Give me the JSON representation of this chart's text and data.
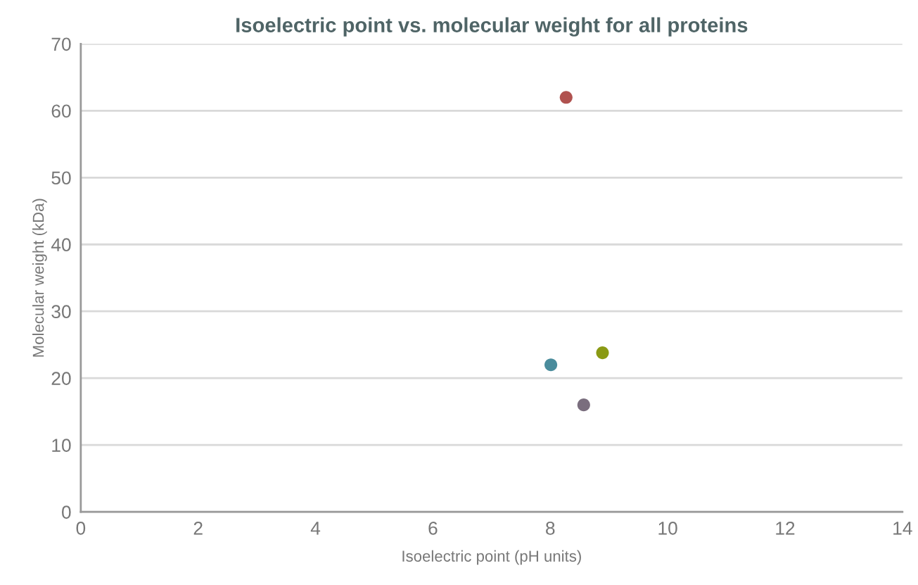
{
  "chart_data": {
    "type": "scatter",
    "title": "Isoelectric point vs. molecular weight for all proteins",
    "xlabel": "Isoelectric point (pH units)",
    "ylabel": "Molecular weight (kDa)",
    "x": [
      8.27,
      8.01,
      8.89,
      8.57
    ],
    "values": [
      62,
      22,
      23.8,
      16
    ],
    "colors": [
      "#b0524f",
      "#4a8c9c",
      "#8a9a14",
      "#7a6e7e"
    ],
    "xlim": [
      0,
      14
    ],
    "xticks": [
      0,
      2,
      4,
      6,
      8,
      10,
      12,
      14
    ],
    "ylim": [
      0,
      70
    ],
    "yticks": [
      0,
      10,
      20,
      30,
      40,
      50,
      60,
      70
    ],
    "grid": "y",
    "marker": "circle"
  }
}
